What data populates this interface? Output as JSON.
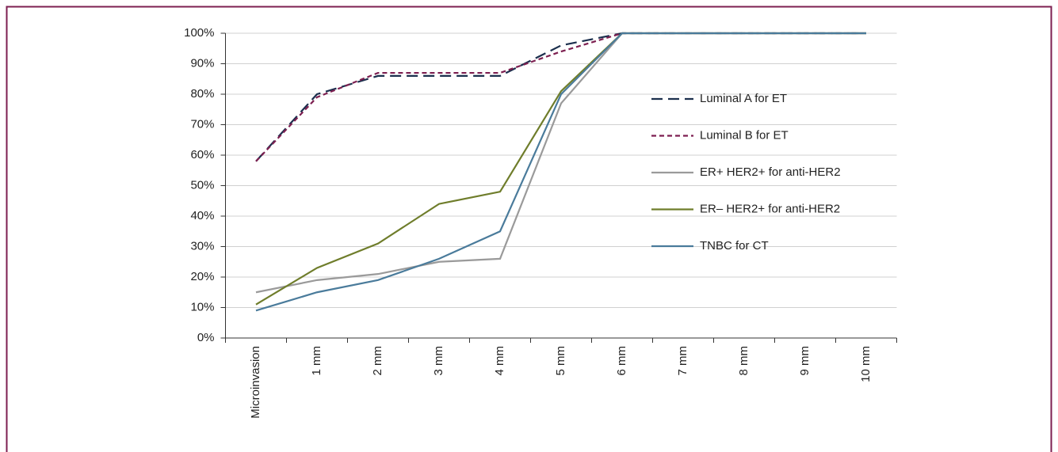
{
  "chart_data": {
    "type": "line",
    "categories": [
      "Microinvasion",
      "1 mm",
      "2 mm",
      "3 mm",
      "4 mm",
      "5 mm",
      "6 mm",
      "7 mm",
      "8 mm",
      "9 mm",
      "10 mm"
    ],
    "series": [
      {
        "name": "Luminal A for ET",
        "color": "#1b2f4d",
        "dash": "long",
        "values": [
          58,
          80,
          86,
          86,
          86,
          96,
          100,
          100,
          100,
          100,
          100
        ]
      },
      {
        "name": "Luminal B for ET",
        "color": "#7d1f50",
        "dash": "short",
        "values": [
          58,
          79,
          87,
          87,
          87,
          94,
          100,
          100,
          100,
          100,
          100
        ]
      },
      {
        "name": "ER+ HER2+ for anti-HER2",
        "color": "#9a9a9a",
        "dash": "solid",
        "values": [
          15,
          19,
          21,
          25,
          26,
          77,
          100,
          100,
          100,
          100,
          100
        ]
      },
      {
        "name": "ER– HER2+ for anti-HER2",
        "color": "#6f7d2b",
        "dash": "solid",
        "values": [
          11,
          23,
          31,
          44,
          48,
          81,
          100,
          100,
          100,
          100,
          100
        ]
      },
      {
        "name": "TNBC for CT",
        "color": "#4a7b9b",
        "dash": "solid",
        "values": [
          9,
          15,
          19,
          26,
          35,
          80,
          100,
          100,
          100,
          100,
          100
        ]
      }
    ],
    "ylim": [
      0,
      100
    ],
    "yticks": [
      {
        "value": 0,
        "label": "0%"
      },
      {
        "value": 10,
        "label": "10%"
      },
      {
        "value": 20,
        "label": "20%"
      },
      {
        "value": 30,
        "label": "30%"
      },
      {
        "value": 40,
        "label": "40%"
      },
      {
        "value": 50,
        "label": "50%"
      },
      {
        "value": 60,
        "label": "60%"
      },
      {
        "value": 70,
        "label": "70%"
      },
      {
        "value": 80,
        "label": "80%"
      },
      {
        "value": 90,
        "label": "90%"
      },
      {
        "value": 100,
        "label": "100%"
      }
    ],
    "grid": true,
    "legend": "right"
  }
}
